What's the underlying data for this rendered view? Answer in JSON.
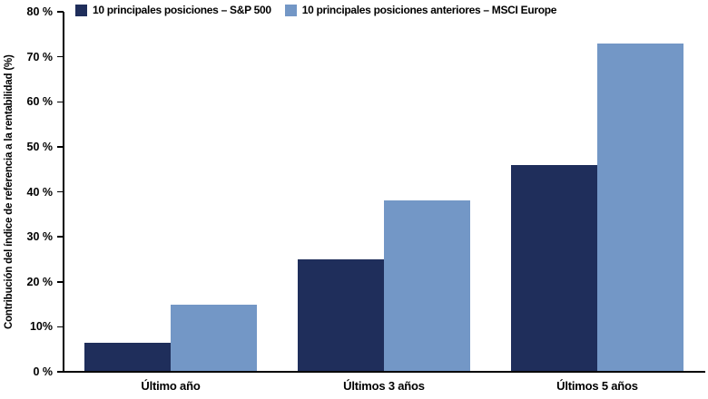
{
  "chart_data": {
    "type": "bar",
    "title": "",
    "xlabel": "",
    "ylabel": "Contribución del índice de referencia a la rentabilidad (%)",
    "categories": [
      "Último año",
      "Últimos 3 años",
      "Últimos 5 años"
    ],
    "series": [
      {
        "name": "10 principales posiciones – S&P 500",
        "color": "#1F2E5B",
        "values": [
          6.5,
          25,
          46
        ]
      },
      {
        "name": "10 principales posiciones anteriores – MSCI Europe",
        "color": "#7397C6",
        "values": [
          15,
          38,
          73
        ]
      }
    ],
    "ylim": [
      0,
      80
    ],
    "ytick_step": 10,
    "ytick_labels": [
      "0 %",
      "10%",
      "20 %",
      "30 %",
      "40 %",
      "50 %",
      "60 %",
      "70 %",
      "80 %"
    ],
    "grid": false,
    "legend_position": "top"
  },
  "colors": {
    "axis": "#000000",
    "text": "#000000",
    "background": "#FFFFFF"
  }
}
